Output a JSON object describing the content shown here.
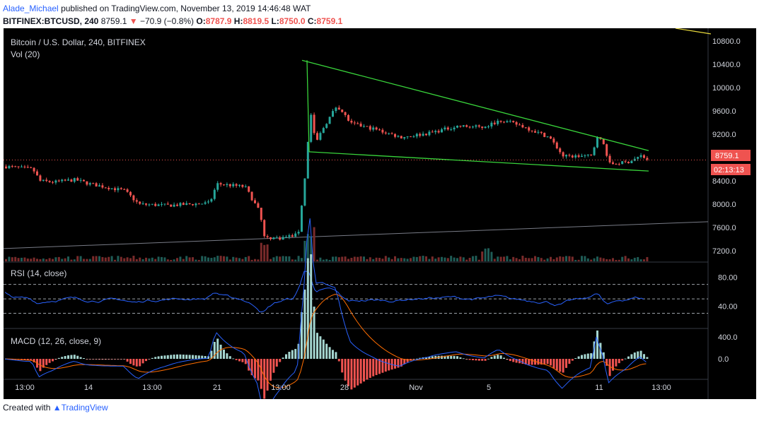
{
  "header": {
    "user": "Alade_Michael",
    "published_text": "published on TradingView.com, November 13, 2019 14:46:48 WAT",
    "symbol": "BITFINEX:BTCUSD, 240",
    "last": "8759.1",
    "change": "−70.9 (−0.8%)",
    "o_label": "O:",
    "o": "8787.9",
    "h_label": "H:",
    "h": "8819.5",
    "l_label": "L:",
    "l": "8750.0",
    "c_label": "C:",
    "c": "8759.1"
  },
  "footer": {
    "created_with": "Created with",
    "brand": "TradingView"
  },
  "chart_data": {
    "type": "candlestick",
    "title": "Bitcoin / U.S. Dollar, 240, BITFINEX",
    "volume_label": "Vol (20)",
    "x_tick_labels": [
      "13:00",
      "14",
      "13:00",
      "21",
      "13:00",
      "28",
      "Nov",
      "5",
      "11",
      "13:00"
    ],
    "y_ticks": [
      7200,
      7600,
      8000,
      8400,
      8800,
      9200,
      9600,
      10000,
      10400,
      10800
    ],
    "y_tick_labels": [
      "7200.0",
      "7600.0",
      "8000.0",
      "8400.0",
      "8800.0",
      "9200.0",
      "9600.0",
      "10000.0",
      "10400.0",
      "10800.0"
    ],
    "ylim": [
      7020,
      11020
    ],
    "last_price_label": "8759.1",
    "countdown_label": "02:13:13",
    "colors": {
      "up": "#26a69a",
      "down": "#ef5350",
      "bg": "#000000",
      "pattern": "#39d43b",
      "rsi": "#2962ff",
      "macd": "#2962ff",
      "signal": "#ff6d00"
    },
    "price_path": [
      [
        0,
        8650
      ],
      [
        40,
        8600
      ],
      [
        50,
        8400
      ],
      [
        70,
        8380
      ],
      [
        100,
        8420
      ],
      [
        120,
        8350
      ],
      [
        170,
        8230
      ],
      [
        190,
        8000
      ],
      [
        230,
        7980
      ],
      [
        260,
        8000
      ],
      [
        290,
        8020
      ],
      [
        300,
        8350
      ],
      [
        340,
        8300
      ],
      [
        360,
        7880
      ],
      [
        368,
        7430
      ],
      [
        390,
        7420
      ],
      [
        415,
        7480
      ],
      [
        425,
        8500
      ],
      [
        432,
        9600
      ],
      [
        440,
        9050
      ],
      [
        450,
        9300
      ],
      [
        470,
        9700
      ],
      [
        490,
        9380
      ],
      [
        520,
        9300
      ],
      [
        560,
        9150
      ],
      [
        600,
        9220
      ],
      [
        640,
        9340
      ],
      [
        680,
        9320
      ],
      [
        700,
        9450
      ],
      [
        730,
        9350
      ],
      [
        770,
        9150
      ],
      [
        790,
        8820
      ],
      [
        830,
        8830
      ],
      [
        838,
        9180
      ],
      [
        848,
        9000
      ],
      [
        855,
        8690
      ],
      [
        880,
        8720
      ],
      [
        900,
        8830
      ],
      [
        910,
        8760
      ]
    ],
    "trendlines": [
      {
        "name": "upper",
        "from": [
          422,
          10470
        ],
        "to": [
          912,
          8920
        ]
      },
      {
        "name": "lower",
        "from": [
          432,
          8900
        ],
        "to": [
          912,
          8570
        ]
      },
      {
        "name": "support",
        "from": [
          0,
          7240
        ],
        "to": [
          996,
          7700
        ]
      }
    ],
    "rsi": {
      "label": "RSI (14, close)",
      "y_ticks": [
        "80.00",
        "40.00"
      ],
      "levels": [
        70,
        50,
        30
      ]
    },
    "macd": {
      "label": "MACD (12, 26, close, 9)",
      "y_ticks": [
        "400.0",
        "0.0"
      ]
    }
  }
}
